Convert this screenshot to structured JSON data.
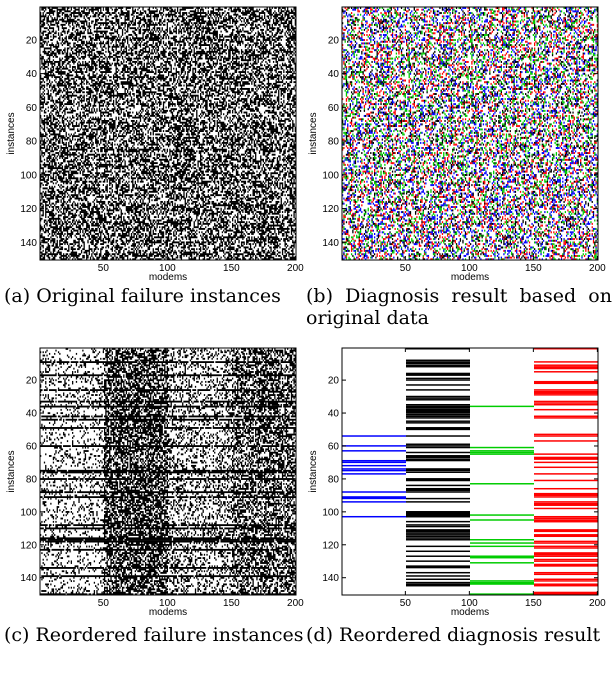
{
  "chart_data": [
    {
      "type": "heatmap",
      "panel": "a",
      "caption": "(a) Original failure instances",
      "xlabel": "modems",
      "ylabel": "instances",
      "xlim": [
        1,
        200
      ],
      "ylim": [
        1,
        150
      ],
      "xticks": [
        50,
        100,
        150,
        200
      ],
      "yticks": [
        20,
        40,
        60,
        80,
        100,
        120,
        140
      ],
      "colors": [
        "#000000"
      ],
      "values": "binary failure matrix (150 instances x 200 modems), dense random black/white pattern"
    },
    {
      "type": "heatmap",
      "panel": "b",
      "caption": "(b) Diagnosis result based on original data",
      "xlabel": "modems",
      "ylabel": "instances",
      "xlim": [
        1,
        200
      ],
      "ylim": [
        1,
        150
      ],
      "xticks": [
        50,
        100,
        150,
        200
      ],
      "yticks": [
        20,
        40,
        60,
        80,
        100,
        120,
        140
      ],
      "colors": [
        "#0000ff",
        "#000000",
        "#00cc00",
        "#ff0000"
      ],
      "values": "diagnosis labels over original order, four colour classes interleaved"
    },
    {
      "type": "heatmap",
      "panel": "c",
      "caption": "(c) Reordered failure instances",
      "xlabel": "modems",
      "ylabel": "instances",
      "xlim": [
        1,
        200
      ],
      "ylim": [
        1,
        150
      ],
      "xticks": [
        50,
        100,
        150,
        200
      ],
      "yticks": [
        20,
        40,
        60,
        80,
        100,
        120,
        140
      ],
      "colors": [
        "#000000"
      ],
      "column_blocks": [
        [
          1,
          50
        ],
        [
          51,
          100
        ],
        [
          101,
          150
        ],
        [
          151,
          200
        ]
      ],
      "values": "failure matrix with modems reordered into four blocks of 50"
    },
    {
      "type": "heatmap",
      "panel": "d",
      "caption": "(d) Reordered diagnosis result",
      "xlabel": "modems",
      "ylabel": "instances",
      "xlim": [
        1,
        200
      ],
      "ylim": [
        1,
        150
      ],
      "xticks": [
        50,
        100,
        150,
        200
      ],
      "yticks": [
        20,
        40,
        60,
        80,
        100,
        120,
        140
      ],
      "column_blocks": [
        {
          "range": [
            1,
            50
          ],
          "color": "#0000ff"
        },
        {
          "range": [
            51,
            100
          ],
          "color": "#000000"
        },
        {
          "range": [
            101,
            150
          ],
          "color": "#00cc00"
        },
        {
          "range": [
            151,
            200
          ],
          "color": "#ff0000"
        }
      ],
      "values": "horizontal line segments per block marking instances assigned to each diagnosis class"
    }
  ]
}
